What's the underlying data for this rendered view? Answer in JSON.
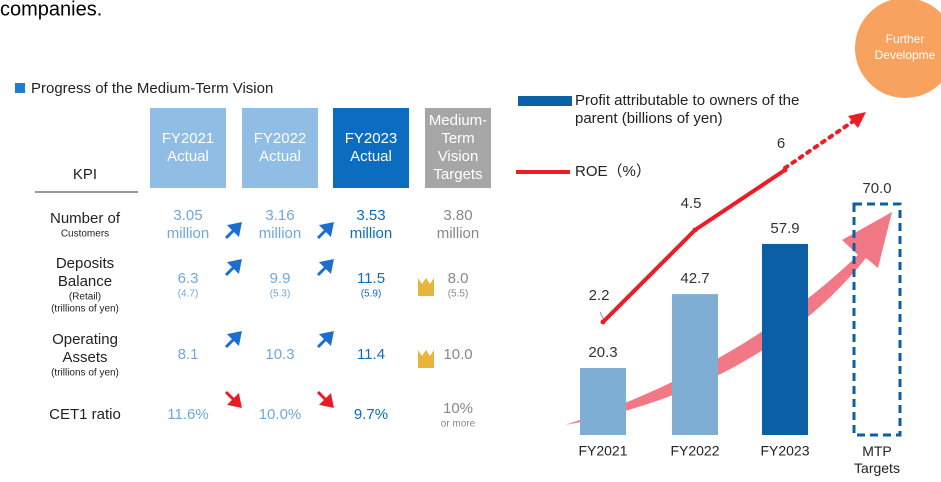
{
  "header": {
    "text": "companies.",
    "bubble": [
      "Further",
      "Developme"
    ]
  },
  "section_title": "Progress of the Medium-Term Vision",
  "table": {
    "columns": [
      [
        "KPI"
      ],
      [
        "FY2021",
        "Actual"
      ],
      [
        "FY2022",
        "Actual"
      ],
      [
        "FY2023",
        "Actual"
      ],
      [
        "Medium-",
        "Term",
        "Vision",
        "Targets"
      ]
    ],
    "rows": [
      [
        [
          "Number of",
          "Customers"
        ],
        [
          "3.05",
          "million"
        ],
        [
          "3.16",
          "million"
        ],
        [
          "3.53",
          "million"
        ],
        [
          "3.80",
          "million"
        ]
      ],
      [
        [
          "Deposits",
          "Balance",
          "(Retail)",
          "(trillions of yen)"
        ],
        [
          "6.3",
          "(4.7)"
        ],
        [
          "9.9",
          "(5.3)"
        ],
        [
          "11.5",
          "(5.9)"
        ],
        [
          "8.0",
          "(5.5)"
        ]
      ],
      [
        [
          "Operating",
          "Assets",
          "(trillions of yen)"
        ],
        [
          "8.1"
        ],
        [
          "10.3"
        ],
        [
          "11.4"
        ],
        [
          "10.0"
        ]
      ],
      [
        [
          "CET1 ratio"
        ],
        [
          "11.6%"
        ],
        [
          "10.0%"
        ],
        [
          "9.7%"
        ],
        [
          "10%",
          "or more"
        ]
      ]
    ]
  },
  "chart_data": {
    "type": "bar",
    "categories": [
      "FY2021",
      "FY2022",
      "FY2023",
      "MTP Targets"
    ],
    "series": [
      {
        "name": "Profit attributable to owners of the parent (billions of yen)",
        "color": "#0b5fa5",
        "colors": [
          "#7eaed4",
          "#7eaed4",
          "#0b5fa5",
          "#0b5fa5"
        ],
        "dashed": [
          false,
          false,
          false,
          true
        ],
        "values": [
          20.3,
          42.7,
          57.9,
          70
        ],
        "value_labels": [
          "20.3",
          "42.7",
          "57.9",
          "70.0"
        ]
      },
      {
        "name": "ROE（%）",
        "type": "line",
        "color": "#ee1c24",
        "values": [
          2.2,
          4.5,
          6,
          null
        ]
      }
    ]
  }
}
